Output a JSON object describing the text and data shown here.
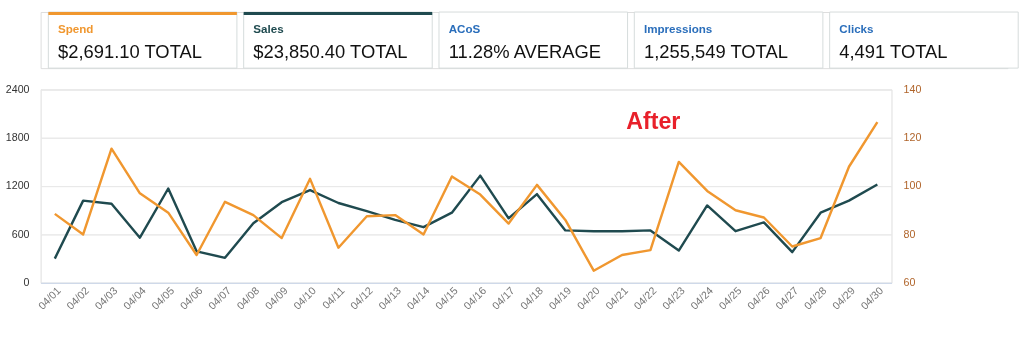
{
  "chart_data": {
    "type": "line",
    "categories": [
      "04/01",
      "04/02",
      "04/03",
      "04/04",
      "04/05",
      "04/06",
      "04/07",
      "04/08",
      "04/09",
      "04/10",
      "04/11",
      "04/12",
      "04/13",
      "04/14",
      "04/15",
      "04/16",
      "04/17",
      "04/18",
      "04/19",
      "04/20",
      "04/21",
      "04/22",
      "04/23",
      "04/24",
      "04/25",
      "04/26",
      "04/27",
      "04/28",
      "04/29",
      "04/30"
    ],
    "series": [
      {
        "name": "Spend",
        "color": "#f0972f",
        "axis": "y2",
        "values": [
          88.5,
          80,
          115.5,
          97,
          89,
          71.5,
          93.5,
          88,
          78.5,
          103,
          74.5,
          87.5,
          88,
          80,
          104,
          96.5,
          84.5,
          100.5,
          86,
          65,
          71.5,
          73.5,
          110,
          98,
          90,
          87,
          75,
          78.5,
          108,
          126.5
        ]
      },
      {
        "name": "Sales",
        "color": "#1f4a4f",
        "values": [
          300,
          1020,
          980,
          560,
          1170,
          390,
          310,
          740,
          1000,
          1150,
          990,
          890,
          780,
          690,
          870,
          1330,
          800,
          1100,
          650,
          640,
          640,
          650,
          400,
          960,
          640,
          750,
          380,
          870,
          1020,
          1220
        ]
      }
    ],
    "ylim": [
      0,
      2400
    ],
    "yticks": [
      0,
      600,
      1200,
      1800,
      2400
    ],
    "y2lim": [
      60,
      140
    ],
    "y2ticks": [
      60,
      80,
      100,
      120,
      140
    ],
    "grid": "y",
    "line_style": "solid",
    "marker": "none",
    "annotations": [
      "$2,691.10 TOTAL",
      "$23,850.40 TOTAL",
      "ACoS",
      "11.28% AVERAGE",
      "Impressions",
      "1,255,549 TOTAL",
      "Clicks",
      "4,491 TOTAL",
      "After"
    ]
  }
}
